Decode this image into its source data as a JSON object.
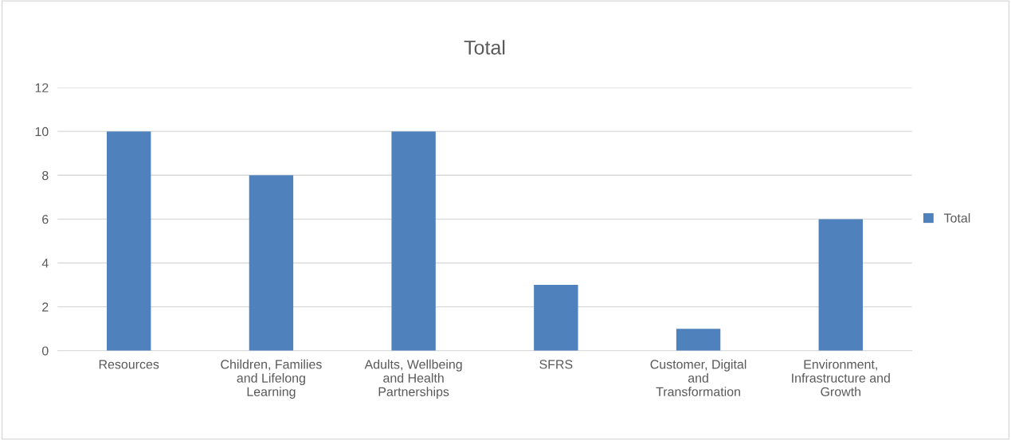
{
  "chart_data": {
    "type": "bar",
    "title": "Total",
    "categories": [
      "Resources",
      "Children, Families\nand Lifelong\nLearning",
      "Adults, Wellbeing\nand Health\nPartnerships",
      "SFRS",
      "Customer, Digital\nand\nTransformation",
      "Environment,\nInfrastructure and\nGrowth"
    ],
    "series": [
      {
        "name": "Total",
        "color": "#4f81bd",
        "values": [
          10,
          8,
          10,
          3,
          1,
          6
        ]
      }
    ],
    "ylim": [
      0,
      12
    ],
    "yticks": [
      0,
      2,
      4,
      6,
      8,
      10,
      12
    ],
    "grid": "y",
    "legend": "right"
  }
}
